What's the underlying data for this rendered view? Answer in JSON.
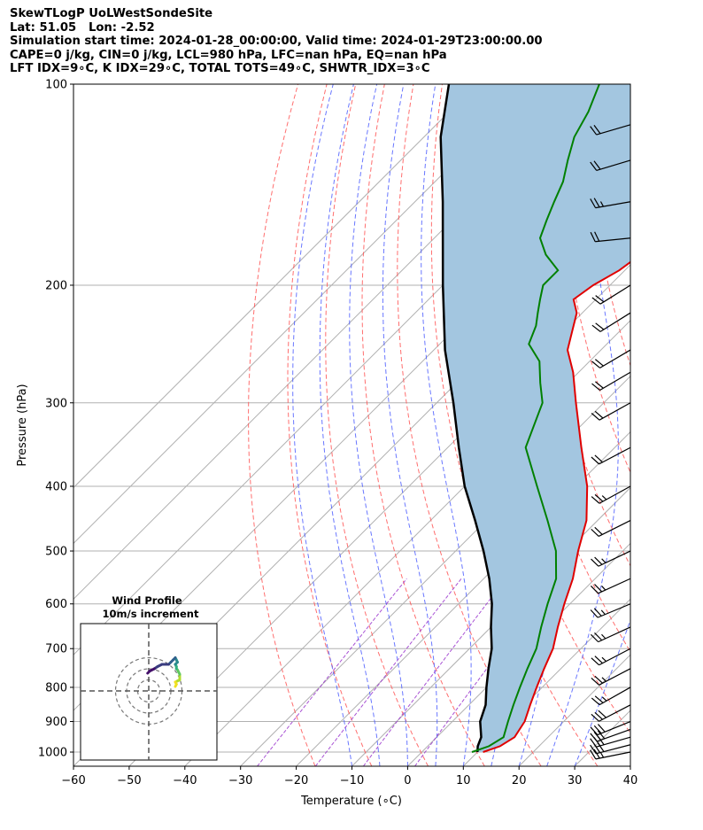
{
  "header": {
    "lines": [
      "SkewTLogP UoLWestSondeSite",
      "Lat: 51.05   Lon: -2.52",
      "Simulation start time: 2024-01-28_00:00:00, Valid time: 2024-01-29T23:00:00.00",
      "CAPE=0 j/kg, CIN=0 j/kg, LCL=980 hPa, LFC=nan hPa, EQ=nan hPa",
      "LFT IDX=9∘C, K IDX=29∘C, TOTAL TOTS=49∘C, SHWTR_IDX=3∘C"
    ]
  },
  "colors": {
    "temperature": "#e00000",
    "dewpoint": "#008000",
    "parcel": "#000000",
    "fill": "#a3c6e0",
    "dry_adiabat": "#ff5555",
    "moist_adiabat": "#4455ff",
    "mixing_ratio": "#9933cc",
    "isotherm": "#b0b0b0"
  },
  "chart_data": {
    "type": "skew-t log-p",
    "xlabel": "Temperature (∘C)",
    "ylabel": "Pressure (hPa)",
    "xlim": [
      -60,
      40
    ],
    "ylim": [
      1050,
      100
    ],
    "x_ticks": [
      "−60",
      "−50",
      "−40",
      "−30",
      "−20",
      "−10",
      "0",
      "10",
      "20",
      "30",
      "40"
    ],
    "y_ticks": [
      "100",
      "200",
      "300",
      "400",
      "500",
      "600",
      "700",
      "800",
      "900",
      "1000"
    ],
    "temperature": [
      {
        "p": 1000,
        "t": 11
      },
      {
        "p": 980,
        "t": 13
      },
      {
        "p": 950,
        "t": 14
      },
      {
        "p": 900,
        "t": 13
      },
      {
        "p": 850,
        "t": 11
      },
      {
        "p": 800,
        "t": 9
      },
      {
        "p": 750,
        "t": 7
      },
      {
        "p": 700,
        "t": 5
      },
      {
        "p": 650,
        "t": 2
      },
      {
        "p": 600,
        "t": -1
      },
      {
        "p": 550,
        "t": -4
      },
      {
        "p": 500,
        "t": -8
      },
      {
        "p": 450,
        "t": -12
      },
      {
        "p": 400,
        "t": -18
      },
      {
        "p": 350,
        "t": -26
      },
      {
        "p": 300,
        "t": -35
      },
      {
        "p": 270,
        "t": -41
      },
      {
        "p": 250,
        "t": -46
      },
      {
        "p": 220,
        "t": -51
      },
      {
        "p": 210,
        "t": -54
      },
      {
        "p": 200,
        "t": -53
      },
      {
        "p": 190,
        "t": -51
      },
      {
        "p": 180,
        "t": -50
      },
      {
        "p": 170,
        "t": -49
      },
      {
        "p": 160,
        "t": -50
      },
      {
        "p": 150,
        "t": -51
      },
      {
        "p": 140,
        "t": -52
      },
      {
        "p": 130,
        "t": -53
      },
      {
        "p": 120,
        "t": -55
      },
      {
        "p": 110,
        "t": -57
      },
      {
        "p": 100,
        "t": -58
      }
    ],
    "dewpoint": [
      {
        "p": 1000,
        "t": 9
      },
      {
        "p": 980,
        "t": 11
      },
      {
        "p": 950,
        "t": 12
      },
      {
        "p": 900,
        "t": 10
      },
      {
        "p": 850,
        "t": 8
      },
      {
        "p": 800,
        "t": 6
      },
      {
        "p": 750,
        "t": 4
      },
      {
        "p": 700,
        "t": 2
      },
      {
        "p": 650,
        "t": -1
      },
      {
        "p": 600,
        "t": -4
      },
      {
        "p": 550,
        "t": -7
      },
      {
        "p": 500,
        "t": -12
      },
      {
        "p": 450,
        "t": -19
      },
      {
        "p": 400,
        "t": -27
      },
      {
        "p": 350,
        "t": -36
      },
      {
        "p": 300,
        "t": -41
      },
      {
        "p": 280,
        "t": -45
      },
      {
        "p": 260,
        "t": -49
      },
      {
        "p": 245,
        "t": -54
      },
      {
        "p": 230,
        "t": -56
      },
      {
        "p": 220,
        "t": -58
      },
      {
        "p": 210,
        "t": -60
      },
      {
        "p": 200,
        "t": -62
      },
      {
        "p": 190,
        "t": -62
      },
      {
        "p": 180,
        "t": -67
      },
      {
        "p": 170,
        "t": -71
      },
      {
        "p": 160,
        "t": -73
      },
      {
        "p": 150,
        "t": -75
      },
      {
        "p": 140,
        "t": -77
      },
      {
        "p": 130,
        "t": -80
      },
      {
        "p": 120,
        "t": -83
      },
      {
        "p": 110,
        "t": -85
      },
      {
        "p": 100,
        "t": -88
      }
    ],
    "parcel": [
      {
        "p": 1000,
        "t": 10
      },
      {
        "p": 980,
        "t": 9
      },
      {
        "p": 950,
        "t": 8
      },
      {
        "p": 900,
        "t": 5
      },
      {
        "p": 850,
        "t": 3
      },
      {
        "p": 800,
        "t": 0
      },
      {
        "p": 750,
        "t": -3
      },
      {
        "p": 700,
        "t": -6
      },
      {
        "p": 650,
        "t": -10
      },
      {
        "p": 600,
        "t": -14
      },
      {
        "p": 550,
        "t": -19
      },
      {
        "p": 500,
        "t": -25
      },
      {
        "p": 450,
        "t": -32
      },
      {
        "p": 400,
        "t": -40
      },
      {
        "p": 350,
        "t": -48
      },
      {
        "p": 300,
        "t": -57
      },
      {
        "p": 250,
        "t": -68
      },
      {
        "p": 200,
        "t": -80
      },
      {
        "p": 150,
        "t": -95
      },
      {
        "p": 120,
        "t": -107
      },
      {
        "p": 100,
        "t": -115
      }
    ],
    "dry_adiabats_theta_K": [
      253,
      263,
      273,
      283,
      293,
      303,
      313,
      323,
      333,
      343,
      353,
      363,
      373,
      383,
      393,
      403,
      413,
      423,
      433
    ],
    "moist_adiabats_C": [
      -10,
      -5,
      0,
      5,
      10,
      15,
      20,
      25,
      30
    ],
    "mixing_ratio_lines_gkg": [
      0.4,
      1,
      2,
      4
    ],
    "isotherms_C": [
      -110,
      -100,
      -90,
      -80,
      -70,
      -60,
      -50,
      -40,
      -30,
      -20,
      -10,
      0,
      10,
      20,
      30,
      40
    ],
    "wind_barbs": [
      {
        "p": 1000,
        "u": 25,
        "v": 5
      },
      {
        "p": 975,
        "u": 27,
        "v": 7
      },
      {
        "p": 950,
        "u": 28,
        "v": 8
      },
      {
        "p": 925,
        "u": 28,
        "v": 10
      },
      {
        "p": 900,
        "u": 27,
        "v": 11
      },
      {
        "p": 850,
        "u": 25,
        "v": 13
      },
      {
        "p": 800,
        "u": 23,
        "v": 13
      },
      {
        "p": 750,
        "u": 23,
        "v": 12
      },
      {
        "p": 700,
        "u": 23,
        "v": 12
      },
      {
        "p": 650,
        "u": 24,
        "v": 11
      },
      {
        "p": 600,
        "u": 24,
        "v": 10
      },
      {
        "p": 550,
        "u": 22,
        "v": 10
      },
      {
        "p": 500,
        "u": 21,
        "v": 10
      },
      {
        "p": 450,
        "u": 20,
        "v": 10
      },
      {
        "p": 400,
        "u": 20,
        "v": 11
      },
      {
        "p": 350,
        "u": 19,
        "v": 10
      },
      {
        "p": 300,
        "u": 18,
        "v": 10
      },
      {
        "p": 270,
        "u": 17,
        "v": 10
      },
      {
        "p": 250,
        "u": 17,
        "v": 10
      },
      {
        "p": 220,
        "u": 16,
        "v": 10
      },
      {
        "p": 200,
        "u": 16,
        "v": 10
      },
      {
        "p": 170,
        "u": 20,
        "v": 2
      },
      {
        "p": 150,
        "u": 23,
        "v": 4
      },
      {
        "p": 130,
        "u": 20,
        "v": 6
      },
      {
        "p": 115,
        "u": 17,
        "v": 5
      }
    ],
    "hodograph": {
      "title": "Wind Profile",
      "subtitle": "10m/s increment",
      "ring_speeds_ms": [
        10,
        20,
        30
      ],
      "points": [
        {
          "u": 24,
          "v": 4
        },
        {
          "u": 25,
          "v": 6
        },
        {
          "u": 24,
          "v": 8
        },
        {
          "u": 26,
          "v": 9
        },
        {
          "u": 28,
          "v": 10
        },
        {
          "u": 28,
          "v": 13
        },
        {
          "u": 28,
          "v": 15
        },
        {
          "u": 27,
          "v": 17
        },
        {
          "u": 26,
          "v": 19
        },
        {
          "u": 25,
          "v": 20
        },
        {
          "u": 25,
          "v": 22
        },
        {
          "u": 24,
          "v": 24
        },
        {
          "u": 26,
          "v": 26
        },
        {
          "u": 25,
          "v": 28
        },
        {
          "u": 24,
          "v": 30
        },
        {
          "u": 22,
          "v": 28
        },
        {
          "u": 20,
          "v": 26
        },
        {
          "u": 18,
          "v": 24
        },
        {
          "u": 12,
          "v": 24
        },
        {
          "u": 8,
          "v": 22
        },
        {
          "u": 5,
          "v": 20
        },
        {
          "u": 1,
          "v": 18
        },
        {
          "u": -1,
          "v": 16
        }
      ]
    }
  }
}
